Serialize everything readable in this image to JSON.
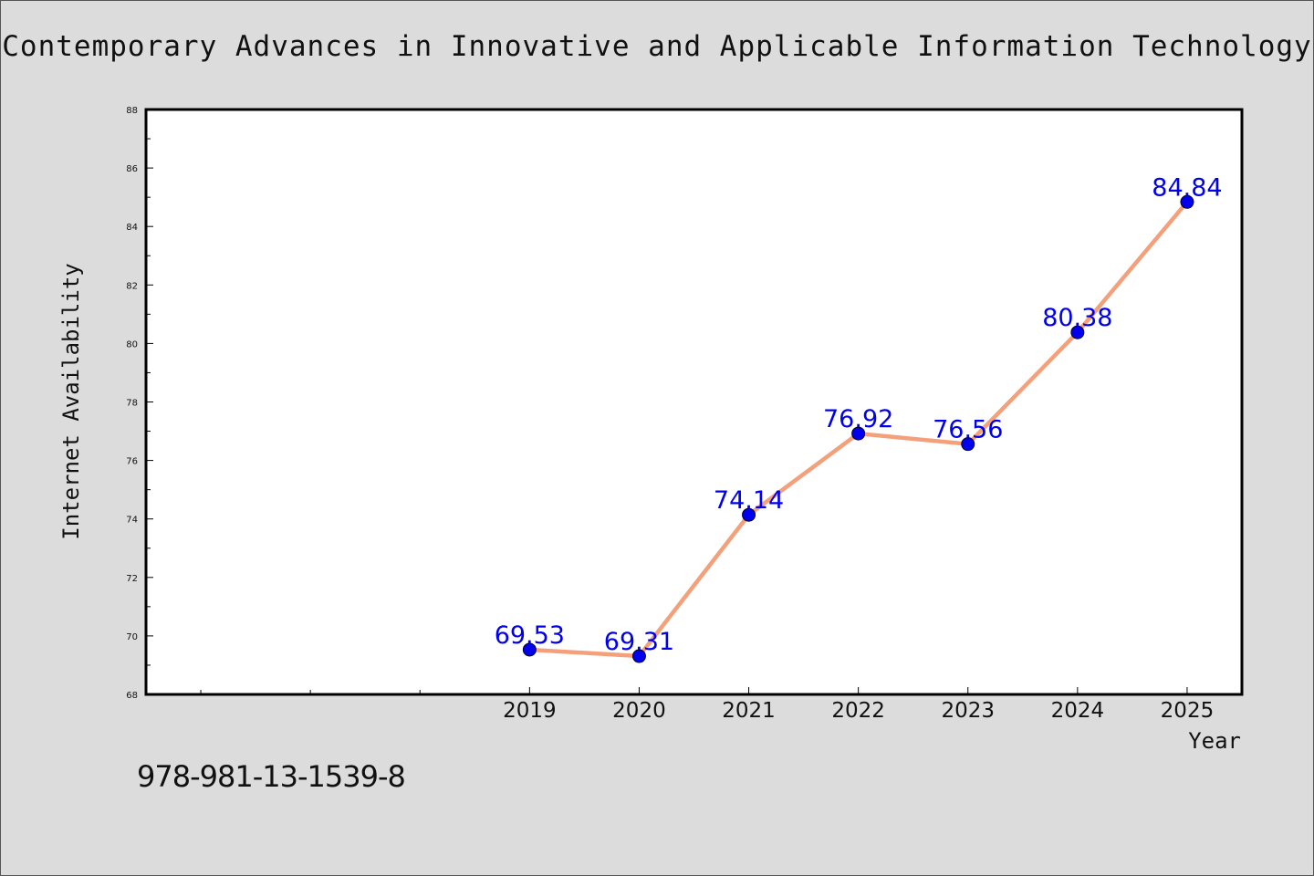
{
  "chart_data": {
    "type": "line",
    "title": "Contemporary Advances in Innovative and Applicable Information Technology",
    "xlabel": "Year",
    "ylabel": "Internet Availability",
    "categories": [
      "2019",
      "2020",
      "2021",
      "2022",
      "2023",
      "2024",
      "2025"
    ],
    "x_positions": [
      3,
      4,
      5,
      6,
      7,
      8,
      9
    ],
    "x_range": [
      -0.5,
      9.5
    ],
    "values": [
      69.53,
      69.31,
      74.14,
      76.92,
      76.56,
      80.38,
      84.84
    ],
    "value_labels": [
      "69.53",
      "69.31",
      "74.14",
      "76.92",
      "76.56",
      "80.38",
      "84.84"
    ],
    "ylim": [
      68,
      88
    ],
    "y_ticks": [
      "68",
      "70",
      "72",
      "74",
      "76",
      "78",
      "80",
      "82",
      "84",
      "86",
      "88"
    ],
    "grid": false,
    "line_color": "#f4a07a",
    "marker_color": "#0000ee",
    "label_color": "#0000ee"
  },
  "footer": {
    "isbn": "978-981-13-1539-8"
  }
}
